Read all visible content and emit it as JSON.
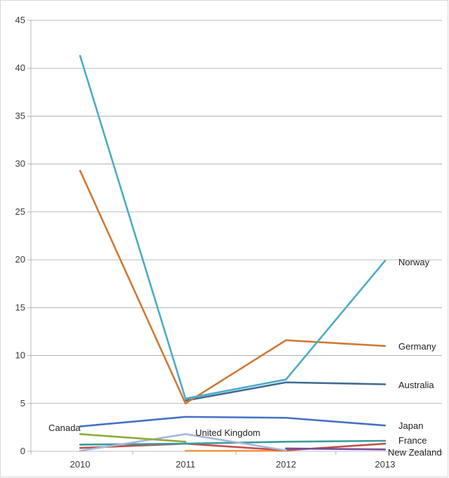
{
  "chart_data": {
    "type": "line",
    "title": "",
    "xlabel": "",
    "ylabel": "",
    "categories": [
      "2010",
      "2011",
      "2012",
      "2013"
    ],
    "y_ticks": [
      "0",
      "5",
      "10",
      "15",
      "20",
      "25",
      "30",
      "35",
      "40",
      "45"
    ],
    "ylim": [
      0,
      45
    ],
    "grid": true,
    "legend": "none",
    "series": [
      {
        "name": "Norway",
        "color": "#4bacc6",
        "values": [
          41.3,
          5.5,
          7.5,
          19.9
        ]
      },
      {
        "name": "Germany",
        "color": "#d07a36",
        "values": [
          29.3,
          5.0,
          11.6,
          11.0
        ]
      },
      {
        "name": "Australia",
        "color": "#3f6b94",
        "values": [
          null,
          5.3,
          7.2,
          7.0
        ]
      },
      {
        "name": "Japan",
        "color": "#4472c4",
        "values": [
          2.6,
          3.6,
          3.5,
          2.7
        ]
      },
      {
        "name": "Canada",
        "color": "#8faa3c",
        "values": [
          1.8,
          1.0,
          null,
          null
        ]
      },
      {
        "name": "United Kingdom",
        "color": "#a6b8dc",
        "values": [
          0.05,
          1.8,
          0.1,
          null
        ]
      },
      {
        "name": "France",
        "color": "#3a9c9c",
        "values": [
          0.7,
          0.8,
          1.0,
          1.1
        ]
      },
      {
        "name": "New Zealand",
        "color": "#7a4a9a",
        "values": [
          null,
          null,
          0.3,
          0.2
        ]
      },
      {
        "name": "",
        "color": "#c0504d",
        "values": [
          0.35,
          0.8,
          0.1,
          0.8
        ]
      },
      {
        "name": "",
        "color": "#f79646",
        "values": [
          null,
          0.05,
          0.05,
          null
        ]
      }
    ]
  }
}
